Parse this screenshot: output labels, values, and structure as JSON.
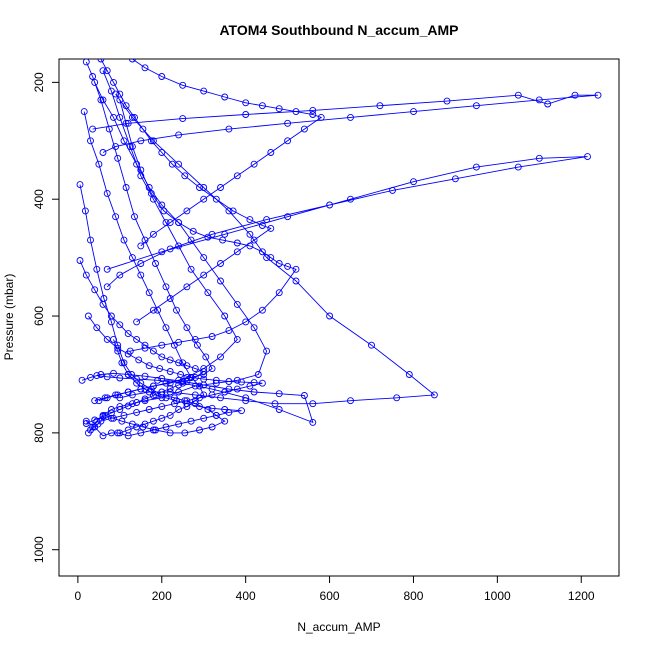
{
  "chart_data": {
    "type": "line",
    "title": "ATOM4 Southbound N_accum_AMP",
    "xlabel": "N_accum_AMP",
    "ylabel": "Pressure (mbar)",
    "xlim": [
      -45,
      1290
    ],
    "ylim": [
      1045,
      160
    ],
    "y_reversed": true,
    "x_ticks": [
      0,
      200,
      400,
      600,
      800,
      1000,
      1200
    ],
    "y_ticks": [
      200,
      400,
      600,
      800,
      1000
    ],
    "grid": false,
    "line_color": "#0000ff",
    "marker": "open-circle",
    "series": [
      {
        "x": [
          5,
          18,
          30,
          45,
          62,
          80,
          95,
          110,
          128,
          150,
          175,
          200,
          230,
          255,
          280,
          310,
          330,
          350,
          320,
          290,
          255,
          220,
          185,
          155,
          130,
          105,
          85,
          65,
          48,
          30
        ],
        "y": [
          375,
          420,
          470,
          520,
          570,
          610,
          650,
          680,
          700,
          715,
          725,
          735,
          740,
          745,
          750,
          760,
          770,
          780,
          790,
          795,
          800,
          800,
          795,
          790,
          785,
          780,
          775,
          770,
          785,
          795
        ]
      },
      {
        "x": [
          15,
          30,
          50,
          70,
          90,
          110,
          130,
          150,
          170,
          190,
          210,
          230,
          250,
          270,
          290,
          300,
          280,
          260,
          240,
          220,
          200,
          180,
          160,
          140,
          120,
          100,
          80,
          60,
          40,
          20
        ],
        "y": [
          250,
          300,
          340,
          390,
          430,
          470,
          500,
          530,
          560,
          590,
          620,
          650,
          680,
          705,
          720,
          735,
          745,
          755,
          760,
          770,
          775,
          780,
          785,
          790,
          795,
          800,
          800,
          805,
          790,
          780
        ]
      },
      {
        "x": [
          40,
          60,
          85,
          110,
          140,
          170,
          200,
          240,
          270,
          300,
          340,
          380,
          420,
          450,
          430,
          380,
          330,
          280,
          240,
          200,
          160,
          130,
          100,
          80,
          60,
          45,
          35,
          25
        ],
        "y": [
          200,
          230,
          260,
          300,
          340,
          380,
          410,
          440,
          470,
          500,
          540,
          580,
          620,
          660,
          700,
          710,
          715,
          720,
          730,
          740,
          745,
          750,
          755,
          760,
          770,
          780,
          790,
          800
        ]
      },
      {
        "x": [
          60,
          80,
          100,
          125,
          150,
          180,
          210,
          240,
          270,
          310,
          350,
          380,
          340,
          300,
          260,
          220,
          180,
          150,
          120,
          95,
          70,
          50
        ],
        "y": [
          180,
          215,
          260,
          310,
          360,
          400,
          440,
          480,
          520,
          560,
          600,
          640,
          670,
          690,
          705,
          715,
          720,
          725,
          730,
          735,
          740,
          745
        ]
      },
      {
        "x": [
          20,
          35,
          55,
          75,
          95,
          115,
          135,
          160,
          185,
          210,
          235,
          260,
          285,
          305,
          320,
          300,
          270,
          240,
          210,
          180,
          150,
          120,
          90,
          65,
          40
        ],
        "y": [
          165,
          190,
          230,
          280,
          330,
          380,
          430,
          470,
          510,
          550,
          590,
          620,
          650,
          670,
          690,
          700,
          705,
          710,
          715,
          720,
          725,
          730,
          735,
          740,
          745
        ]
      },
      {
        "x": [
          90,
          130,
          180,
          240,
          300,
          360,
          410,
          450,
          520,
          600,
          700,
          790,
          850,
          760,
          650,
          560,
          470,
          400,
          340,
          280,
          220,
          170,
          130,
          100
        ],
        "y": [
          220,
          260,
          300,
          340,
          380,
          420,
          460,
          500,
          540,
          600,
          650,
          700,
          735,
          740,
          745,
          750,
          750,
          745,
          740,
          735,
          730,
          730,
          735,
          740
        ]
      },
      {
        "x": [
          35,
          120,
          250,
          400,
          560,
          720,
          880,
          1050,
          1120,
          1185,
          1240,
          1100,
          950,
          800,
          650,
          500,
          360,
          240,
          150,
          90,
          60
        ],
        "y": [
          280,
          270,
          262,
          255,
          248,
          240,
          232,
          222,
          237,
          222,
          222,
          230,
          240,
          250,
          260,
          270,
          280,
          290,
          300,
          310,
          320
        ]
      },
      {
        "x": [
          70,
          200,
          350,
          500,
          650,
          800,
          950,
          1100,
          1215,
          1050,
          900,
          750,
          600,
          450,
          320,
          220,
          150,
          100,
          70
        ],
        "y": [
          520,
          490,
          460,
          430,
          400,
          370,
          345,
          330,
          327,
          345,
          365,
          385,
          410,
          435,
          460,
          485,
          510,
          530,
          550
        ]
      },
      {
        "x": [
          25,
          45,
          70,
          95,
          120,
          145,
          170,
          195,
          220,
          245,
          270,
          300,
          330,
          360,
          390,
          420,
          440,
          410,
          380,
          350,
          320,
          290,
          260,
          230,
          200,
          170,
          140,
          110,
          80,
          55
        ],
        "y": [
          600,
          620,
          640,
          655,
          665,
          675,
          685,
          690,
          695,
          700,
          705,
          708,
          710,
          712,
          713,
          714,
          715,
          720,
          725,
          730,
          735,
          740,
          745,
          750,
          755,
          760,
          765,
          770,
          775,
          780
        ]
      },
      {
        "x": [
          10,
          30,
          55,
          85,
          120,
          160,
          200,
          250,
          300,
          360,
          420,
          480,
          540,
          560,
          480,
          400,
          320,
          250,
          190,
          140,
          100,
          70,
          45
        ],
        "y": [
          710,
          705,
          700,
          698,
          700,
          703,
          707,
          712,
          718,
          725,
          730,
          733,
          736,
          782,
          760,
          740,
          725,
          715,
          710,
          708,
          706,
          704,
          702
        ]
      },
      {
        "x": [
          100,
          115,
          130,
          150,
          175,
          205,
          240,
          275,
          310,
          345,
          380,
          410,
          440,
          460,
          480,
          500,
          520,
          480,
          440,
          400,
          360,
          320,
          280,
          240,
          200,
          160,
          125
        ],
        "y": [
          230,
          270,
          310,
          350,
          390,
          420,
          440,
          455,
          465,
          470,
          475,
          480,
          490,
          500,
          510,
          515,
          520,
          560,
          590,
          610,
          625,
          635,
          640,
          645,
          650,
          655,
          660
        ]
      },
      {
        "x": [
          55,
          70,
          85,
          100,
          115,
          135,
          155,
          175,
          200,
          225,
          255,
          290,
          330,
          370,
          410,
          440,
          460,
          420,
          380,
          340,
          300,
          260,
          220,
          180,
          140
        ],
        "y": [
          160,
          180,
          200,
          220,
          240,
          260,
          280,
          300,
          320,
          340,
          360,
          380,
          400,
          420,
          435,
          445,
          450,
          470,
          490,
          510,
          530,
          550,
          570,
          590,
          610
        ]
      },
      {
        "x": [
          5,
          20,
          40,
          60,
          80,
          100,
          120,
          140,
          160,
          180,
          200,
          220,
          240,
          260,
          280,
          300,
          280,
          260,
          240,
          220,
          200,
          180,
          160,
          140,
          120,
          100,
          80,
          60,
          40,
          20
        ],
        "y": [
          505,
          530,
          555,
          580,
          600,
          615,
          630,
          640,
          650,
          660,
          670,
          675,
          680,
          685,
          690,
          695,
          705,
          712,
          718,
          724,
          730,
          736,
          742,
          748,
          754,
          760,
          766,
          772,
          778,
          784
        ]
      },
      {
        "x": [
          130,
          160,
          200,
          250,
          300,
          350,
          400,
          440,
          480,
          520,
          560,
          580,
          540,
          500,
          460,
          420,
          380,
          340,
          300,
          260,
          220,
          180,
          150
        ],
        "y": [
          160,
          175,
          190,
          205,
          215,
          225,
          235,
          240,
          245,
          250,
          255,
          260,
          280,
          300,
          320,
          340,
          360,
          380,
          400,
          420,
          440,
          460,
          480
        ]
      },
      {
        "x": [
          85,
          95,
          105,
          120,
          140,
          160,
          185,
          210,
          235,
          260,
          290,
          320,
          350,
          390,
          360,
          330,
          300,
          270,
          240,
          210,
          180,
          150,
          120,
          95
        ],
        "y": [
          640,
          660,
          680,
          700,
          715,
          725,
          735,
          740,
          745,
          750,
          755,
          758,
          760,
          762,
          765,
          770,
          775,
          780,
          785,
          790,
          795,
          800,
          805,
          800
        ]
      }
    ]
  }
}
